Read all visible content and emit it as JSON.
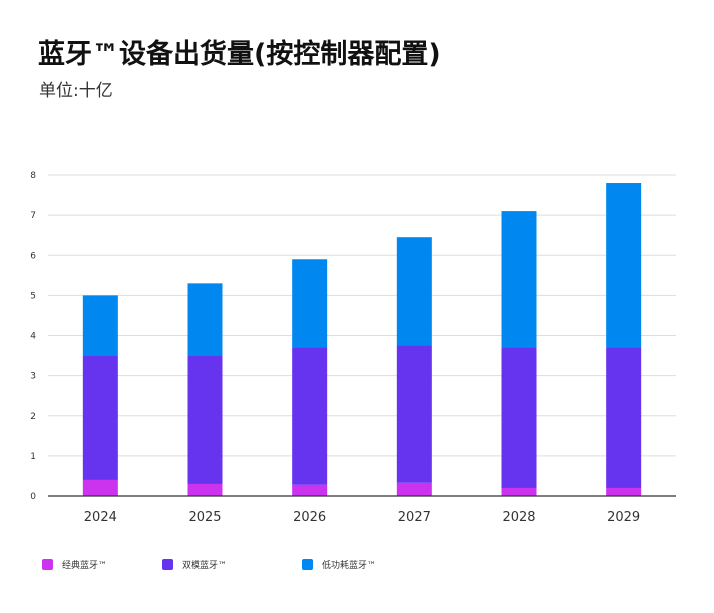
{
  "chart_data": {
    "type": "bar",
    "stacked": true,
    "title": "蓝牙™设备出货量(按控制器配置)",
    "subtitle": "单位:十亿",
    "xlabel": "",
    "ylabel": "",
    "categories": [
      "2024",
      "2025",
      "2026",
      "2027",
      "2028",
      "2029"
    ],
    "ylim": [
      0,
      8
    ],
    "yticks": [
      0,
      1,
      2,
      3,
      4,
      5,
      6,
      7,
      8
    ],
    "grid": true,
    "legend_position": "bottom-left",
    "series": [
      {
        "name": "经典蓝牙™",
        "color": "#cc33ee",
        "values": [
          0.4,
          0.3,
          0.28,
          0.33,
          0.2,
          0.2
        ]
      },
      {
        "name": "双模蓝牙™",
        "color": "#6633ee",
        "values": [
          3.1,
          3.2,
          3.42,
          3.42,
          3.5,
          3.5
        ]
      },
      {
        "name": "低功耗蓝牙™",
        "color": "#0088f0",
        "values": [
          1.5,
          1.8,
          2.2,
          2.7,
          3.4,
          4.1
        ]
      }
    ]
  }
}
